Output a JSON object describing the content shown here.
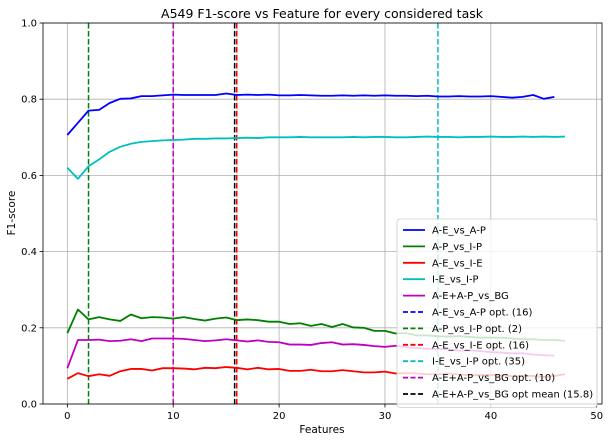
{
  "chart_data": {
    "type": "line",
    "title": "A549 F1-score vs Feature for every considered task",
    "xlabel": "Features",
    "ylabel": "F1-score",
    "xlim": [
      -2.3,
      50.5
    ],
    "ylim": [
      0.0,
      1.0
    ],
    "xticks": [
      "0",
      "10",
      "20",
      "30",
      "40",
      "50"
    ],
    "xtick_values": [
      0,
      10,
      20,
      30,
      40,
      50
    ],
    "yticks": [
      "0.0",
      "0.2",
      "0.4",
      "0.6",
      "0.8",
      "1.0"
    ],
    "ytick_values": [
      0.0,
      0.2,
      0.4,
      0.6,
      0.8,
      1.0
    ],
    "grid": true,
    "legend_position": "lower right",
    "series": [
      {
        "name": "A-E_vs_A-P",
        "color": "#0000ff",
        "x": [
          0,
          1,
          2,
          3,
          4,
          5,
          6,
          7,
          8,
          9,
          10,
          11,
          12,
          13,
          14,
          15,
          16,
          17,
          18,
          19,
          20,
          21,
          22,
          23,
          24,
          25,
          26,
          27,
          28,
          29,
          30,
          31,
          32,
          33,
          34,
          35,
          36,
          37,
          38,
          39,
          40,
          41,
          42,
          43,
          44,
          45,
          46
        ],
        "values": [
          0.706,
          0.738,
          0.77,
          0.772,
          0.79,
          0.801,
          0.802,
          0.808,
          0.808,
          0.81,
          0.812,
          0.811,
          0.811,
          0.811,
          0.811,
          0.815,
          0.811,
          0.812,
          0.811,
          0.812,
          0.81,
          0.81,
          0.811,
          0.81,
          0.809,
          0.809,
          0.81,
          0.809,
          0.81,
          0.809,
          0.81,
          0.809,
          0.809,
          0.808,
          0.809,
          0.807,
          0.807,
          0.808,
          0.807,
          0.807,
          0.808,
          0.806,
          0.804,
          0.806,
          0.811,
          0.801,
          0.806
        ]
      },
      {
        "name": "A-P_vs_I-P",
        "color": "#008000",
        "x": [
          0,
          1,
          2,
          3,
          4,
          5,
          6,
          7,
          8,
          9,
          10,
          11,
          12,
          13,
          14,
          15,
          16,
          17,
          18,
          19,
          20,
          21,
          22,
          23,
          24,
          25,
          26,
          27,
          28,
          29,
          30,
          31,
          32,
          33,
          34,
          35,
          36,
          37,
          38,
          39,
          40,
          41,
          42,
          43,
          44,
          45,
          46,
          47
        ],
        "values": [
          0.186,
          0.248,
          0.222,
          0.228,
          0.222,
          0.218,
          0.235,
          0.225,
          0.228,
          0.227,
          0.224,
          0.228,
          0.223,
          0.219,
          0.224,
          0.227,
          0.22,
          0.222,
          0.22,
          0.216,
          0.216,
          0.21,
          0.212,
          0.205,
          0.21,
          0.202,
          0.21,
          0.201,
          0.2,
          0.192,
          0.192,
          0.185,
          0.186,
          0.18,
          0.18,
          0.178,
          0.177,
          0.178,
          0.176,
          0.174,
          0.174,
          0.174,
          0.172,
          0.17,
          0.17,
          0.168,
          0.168,
          0.166
        ]
      },
      {
        "name": "A-E_vs_I-E",
        "color": "#ff0000",
        "x": [
          0,
          1,
          2,
          3,
          4,
          5,
          6,
          7,
          8,
          9,
          10,
          11,
          12,
          13,
          14,
          15,
          16,
          17,
          18,
          19,
          20,
          21,
          22,
          23,
          24,
          25,
          26,
          27,
          28,
          29,
          30,
          31,
          32,
          33,
          34,
          35,
          36,
          37,
          38,
          39,
          40,
          41,
          42,
          43,
          44,
          45,
          46,
          47
        ],
        "values": [
          0.066,
          0.081,
          0.073,
          0.078,
          0.074,
          0.086,
          0.092,
          0.092,
          0.088,
          0.094,
          0.094,
          0.093,
          0.091,
          0.095,
          0.094,
          0.097,
          0.095,
          0.091,
          0.095,
          0.091,
          0.092,
          0.087,
          0.087,
          0.09,
          0.086,
          0.086,
          0.089,
          0.086,
          0.083,
          0.083,
          0.085,
          0.08,
          0.081,
          0.08,
          0.078,
          0.078,
          0.08,
          0.077,
          0.076,
          0.076,
          0.076,
          0.075,
          0.073,
          0.073,
          0.074,
          0.071,
          0.074,
          0.078
        ]
      },
      {
        "name": "I-E_vs_I-P",
        "color": "#00bfbf",
        "x": [
          0,
          1,
          2,
          3,
          4,
          5,
          6,
          7,
          8,
          9,
          10,
          11,
          12,
          13,
          14,
          15,
          16,
          17,
          18,
          19,
          20,
          21,
          22,
          23,
          24,
          25,
          26,
          27,
          28,
          29,
          30,
          31,
          32,
          33,
          34,
          35,
          36,
          37,
          38,
          39,
          40,
          41,
          42,
          43,
          44,
          45,
          46,
          47
        ],
        "values": [
          0.62,
          0.591,
          0.624,
          0.642,
          0.662,
          0.675,
          0.683,
          0.688,
          0.69,
          0.692,
          0.693,
          0.694,
          0.696,
          0.696,
          0.697,
          0.697,
          0.698,
          0.699,
          0.698,
          0.7,
          0.7,
          0.7,
          0.701,
          0.7,
          0.7,
          0.7,
          0.7,
          0.701,
          0.7,
          0.701,
          0.701,
          0.7,
          0.7,
          0.701,
          0.702,
          0.701,
          0.701,
          0.7,
          0.701,
          0.701,
          0.702,
          0.701,
          0.701,
          0.702,
          0.701,
          0.702,
          0.701,
          0.702
        ]
      },
      {
        "name": "A-E+A-P_vs_BG",
        "color": "#bf00bf",
        "x": [
          0,
          1,
          2,
          3,
          4,
          5,
          6,
          7,
          8,
          9,
          10,
          11,
          12,
          13,
          14,
          15,
          16,
          17,
          18,
          19,
          20,
          21,
          22,
          23,
          24,
          25,
          26,
          27,
          28,
          29,
          30,
          31,
          32,
          33,
          34,
          35,
          36,
          37,
          38,
          39,
          40,
          41,
          42,
          43,
          44,
          45,
          46
        ],
        "values": [
          0.094,
          0.168,
          0.168,
          0.169,
          0.165,
          0.166,
          0.17,
          0.165,
          0.172,
          0.172,
          0.172,
          0.171,
          0.168,
          0.165,
          0.167,
          0.17,
          0.167,
          0.164,
          0.167,
          0.163,
          0.162,
          0.156,
          0.156,
          0.155,
          0.16,
          0.162,
          0.156,
          0.157,
          0.155,
          0.152,
          0.15,
          0.153,
          0.149,
          0.147,
          0.145,
          0.144,
          0.144,
          0.14,
          0.141,
          0.139,
          0.136,
          0.135,
          0.133,
          0.133,
          0.13,
          0.128,
          0.127
        ]
      }
    ],
    "vertical_lines": [
      {
        "label": "A-E_vs_A-P opt. (16)",
        "x": 16,
        "color": "#0000ff"
      },
      {
        "label": "A-P_vs_I-P opt. (2)",
        "x": 2,
        "color": "#008000"
      },
      {
        "label": "A-E_vs_I-E opt. (16)",
        "x": 16,
        "color": "#ff0000"
      },
      {
        "label": "I-E_vs_I-P opt. (35)",
        "x": 35,
        "color": "#00bfbf"
      },
      {
        "label": "A-E+A-P_vs_BG opt. (10)",
        "x": 10,
        "color": "#bf00bf"
      },
      {
        "label": "A-E+A-P_vs_BG opt mean (15.8)",
        "x": 15.8,
        "color": "#000000"
      }
    ]
  }
}
